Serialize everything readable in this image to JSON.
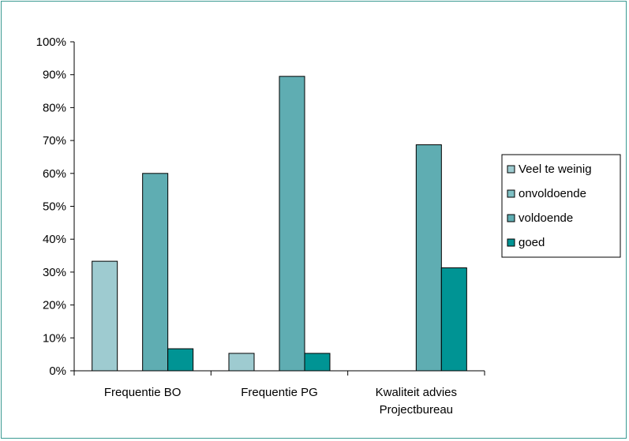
{
  "chart_data": {
    "type": "bar",
    "categories": [
      [
        "Frequentie BO"
      ],
      [
        "Frequentie PG"
      ],
      [
        "Kwaliteit advies",
        "Projectbureau"
      ]
    ],
    "series": [
      {
        "name": "Veel te weinig",
        "color": "#9ecbd0",
        "values": [
          33.3,
          5.3,
          0
        ]
      },
      {
        "name": "onvoldoende",
        "color": "#7fc0c4",
        "values": [
          0,
          0,
          0
        ]
      },
      {
        "name": "voldoende",
        "color": "#5fadb2",
        "values": [
          60,
          89.5,
          68.7
        ]
      },
      {
        "name": "goed",
        "color": "#009494",
        "values": [
          6.7,
          5.3,
          31.3
        ]
      }
    ],
    "ylim": [
      0,
      100
    ],
    "yticks": [
      "0%",
      "10%",
      "20%",
      "30%",
      "40%",
      "50%",
      "60%",
      "70%",
      "80%",
      "90%",
      "100%"
    ],
    "legend_position": "right",
    "grid": false
  }
}
